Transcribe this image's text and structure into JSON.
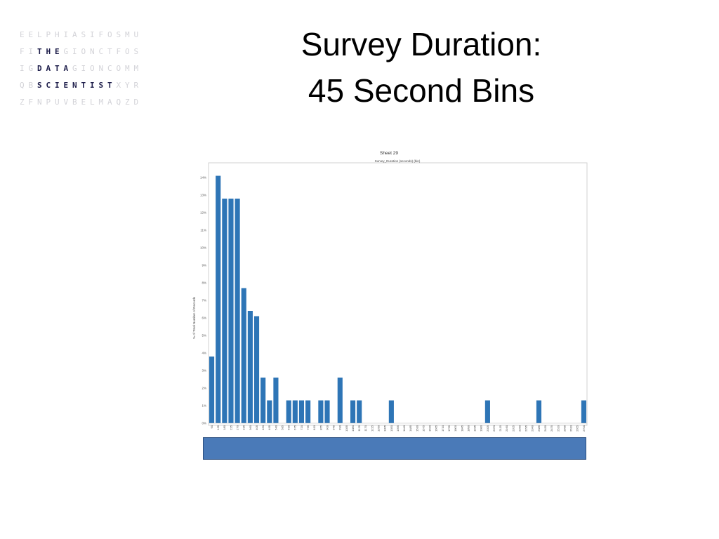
{
  "logo": {
    "rows": [
      [
        "E",
        "E",
        "L",
        "P",
        "H",
        "I",
        "A",
        "S",
        "I",
        "F",
        "O",
        "S",
        "M",
        "U"
      ],
      [
        "F",
        "I",
        "T",
        "H",
        "E",
        "G",
        "I",
        "O",
        "N",
        "C",
        "T",
        "F",
        "O",
        "S"
      ],
      [
        "I",
        "G",
        "D",
        "A",
        "T",
        "A",
        "G",
        "I",
        "O",
        "N",
        "C",
        "O",
        "M",
        "M"
      ],
      [
        "Q",
        "B",
        "S",
        "C",
        "I",
        "E",
        "N",
        "T",
        "I",
        "S",
        "T",
        "X",
        "Y",
        "R"
      ],
      [
        "Z",
        "F",
        "N",
        "P",
        "U",
        "V",
        "B",
        "E",
        "L",
        "M",
        "A",
        "Q",
        "Z",
        "D"
      ]
    ],
    "highlight": [
      [],
      [
        2,
        3,
        4
      ],
      [
        2,
        3,
        4,
        5
      ],
      [
        2,
        3,
        4,
        5,
        6,
        7,
        8,
        9,
        10
      ],
      []
    ]
  },
  "slide": {
    "title_line1": "Survey Duration:",
    "title_line2": "45 Second Bins"
  },
  "chart_data": {
    "type": "bar",
    "title": "Sheet 29",
    "subtitle": "Survey_Duration (seconds) (bin)",
    "xlabel": "",
    "ylabel": "% of Total Number of Records",
    "ylim": [
      0,
      14.5
    ],
    "yticks": [
      "0%",
      "1%",
      "2%",
      "3%",
      "4%",
      "5%",
      "6%",
      "7%",
      "8%",
      "9%",
      "10%",
      "11%",
      "12%",
      "13%",
      "14%"
    ],
    "categories": [
      "90",
      "135",
      "180",
      "225",
      "270",
      "315",
      "360",
      "405",
      "450",
      "495",
      "540",
      "585",
      "630",
      "675",
      "720",
      "765",
      "810",
      "855",
      "900",
      "945",
      "990",
      "1035",
      "1080",
      "1125",
      "1170",
      "1215",
      "1260",
      "1305",
      "1350",
      "1395",
      "1440",
      "1485",
      "1530",
      "1575",
      "1620",
      "1665",
      "1710",
      "1755",
      "1800",
      "1845",
      "1890",
      "1935",
      "1980",
      "2025",
      "2070",
      "2115",
      "2160",
      "2205",
      "2250",
      "2295",
      "2340",
      "2385",
      "2430",
      "2475",
      "2520",
      "2565",
      "2610",
      "2655",
      "2700"
    ],
    "values": [
      3.8,
      14.1,
      12.8,
      12.8,
      12.8,
      7.7,
      6.4,
      6.1,
      2.6,
      1.3,
      2.6,
      0,
      1.3,
      1.3,
      1.3,
      1.3,
      0,
      1.3,
      1.3,
      0,
      2.6,
      0,
      1.3,
      1.3,
      0,
      0,
      0,
      0,
      1.3,
      0,
      0,
      0,
      0,
      0,
      0,
      0,
      0,
      0,
      0,
      0,
      0,
      0,
      0,
      1.3,
      0,
      0,
      0,
      0,
      0,
      0,
      0,
      1.3,
      0,
      0,
      0,
      0,
      0,
      0,
      1.3
    ],
    "bar_color": "#2e75b6",
    "grid": false
  },
  "scrollbar": {
    "color": "#4a7ab8"
  }
}
